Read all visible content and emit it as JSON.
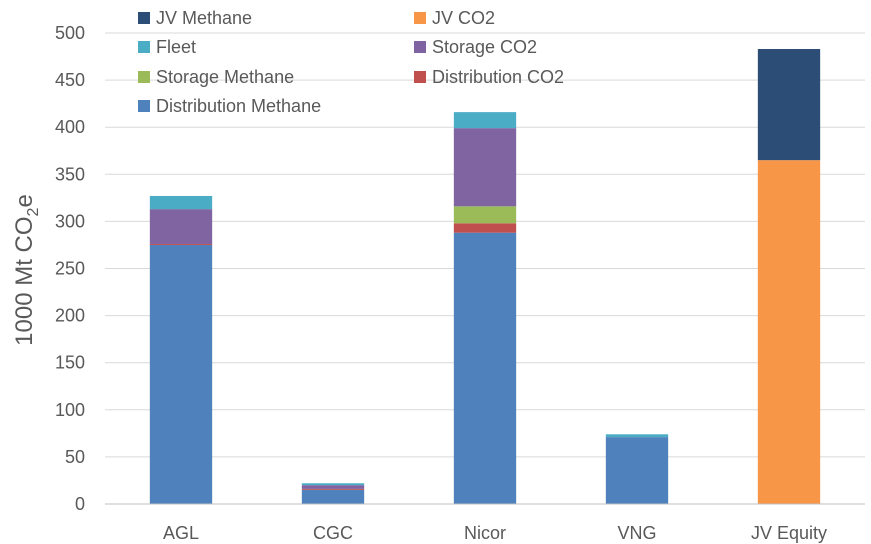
{
  "chart_data": {
    "type": "bar",
    "stacked": true,
    "categories": [
      "AGL",
      "CGC",
      "Nicor",
      "VNG",
      "JV Equity"
    ],
    "ylabel": "1000 Mt CO2e",
    "ylabel_parts": {
      "main": "1000 Mt CO",
      "sub": "2",
      "tail": "e"
    },
    "ylim": [
      0,
      500
    ],
    "yticks": [
      0,
      50,
      100,
      150,
      200,
      250,
      300,
      350,
      400,
      450,
      500
    ],
    "grid": true,
    "legend_position": "top-left",
    "series": [
      {
        "name": "Distribution Methane",
        "color": "#4f81bd",
        "values": [
          275,
          15,
          288,
          71,
          0
        ]
      },
      {
        "name": "Distribution CO2",
        "color": "#c0504d",
        "values": [
          1,
          1,
          10,
          0,
          0
        ]
      },
      {
        "name": "Storage Methane",
        "color": "#9bbb59",
        "values": [
          0,
          0,
          18,
          0,
          0
        ]
      },
      {
        "name": "Storage CO2",
        "color": "#8064a2",
        "values": [
          37,
          4,
          83,
          0,
          0
        ]
      },
      {
        "name": "Fleet",
        "color": "#4bacc6",
        "values": [
          14,
          2,
          17,
          3,
          0
        ]
      },
      {
        "name": "JV CO2",
        "color": "#f79646",
        "values": [
          0,
          0,
          0,
          0,
          365
        ]
      },
      {
        "name": "JV Methane",
        "color": "#2c4d75",
        "values": [
          0,
          0,
          0,
          0,
          118
        ]
      }
    ],
    "legend_order": [
      "JV Methane",
      "JV CO2",
      "Fleet",
      "Storage CO2",
      "Storage Methane",
      "Distribution CO2",
      "Distribution Methane"
    ]
  }
}
